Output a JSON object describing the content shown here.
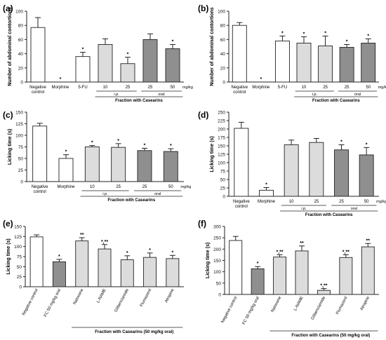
{
  "colors": {
    "open": "#ffffff",
    "light": "#dcdcdc",
    "dark": "#8f8f8f",
    "stroke": "#222222"
  },
  "chart_data": [
    {
      "panel": "(a)",
      "type": "bar",
      "ylabel": "Number of abdominal contortions",
      "ylim": [
        0,
        100
      ],
      "yticks": [
        0,
        20,
        40,
        60,
        80,
        100
      ],
      "categories": [
        "Negative control",
        "Morphine",
        "5-FU",
        "10",
        "25",
        "25",
        "50"
      ],
      "values": [
        77,
        0,
        36,
        53,
        26,
        60,
        47
      ],
      "errors": [
        14,
        0,
        6,
        8,
        9,
        8,
        6
      ],
      "marks": [
        "",
        "*",
        "*",
        "",
        "*",
        "",
        "*"
      ],
      "fills": [
        "open",
        "open",
        "open",
        "light",
        "light",
        "dark",
        "dark"
      ],
      "unit": "mg/kg",
      "groups": [
        {
          "label": "i.p.",
          "from": 3,
          "to": 4
        },
        {
          "label": "oral",
          "from": 5,
          "to": 6
        }
      ],
      "bracket": {
        "label": "Fraction with Casearins",
        "from": 3,
        "to": 6
      }
    },
    {
      "panel": "(b)",
      "type": "bar",
      "ylabel": "Number of abdominal contortions",
      "ylim": [
        0,
        100
      ],
      "yticks": [
        0,
        20,
        40,
        60,
        80,
        100
      ],
      "categories": [
        "Negative control",
        "Morphine",
        "5-FU",
        "10",
        "25",
        "25",
        "50"
      ],
      "values": [
        80,
        0,
        58,
        55,
        51,
        49,
        55
      ],
      "errors": [
        4,
        0,
        7,
        9,
        14,
        4,
        6
      ],
      "marks": [
        "",
        "*",
        "*",
        "*",
        "*",
        "*",
        "*"
      ],
      "fills": [
        "open",
        "open",
        "open",
        "light",
        "light",
        "dark",
        "dark"
      ],
      "unit": "mg/kg",
      "groups": [
        {
          "label": "i.p.",
          "from": 3,
          "to": 4
        },
        {
          "label": "oral",
          "from": 5,
          "to": 6
        }
      ],
      "bracket": {
        "label": "Fraction with Casearins",
        "from": 3,
        "to": 6
      }
    },
    {
      "panel": "(c)",
      "type": "bar",
      "ylabel": "Licking time (s)",
      "ylim": [
        0,
        150
      ],
      "yticks": [
        0,
        25,
        50,
        75,
        100,
        125,
        150
      ],
      "categories": [
        "Negative control",
        "Morphine",
        "10",
        "25",
        "25",
        "50"
      ],
      "values": [
        120,
        50,
        75,
        74,
        67,
        65
      ],
      "errors": [
        6,
        8,
        3,
        8,
        5,
        6
      ],
      "marks": [
        "",
        "*",
        "*",
        "*",
        "*",
        "*"
      ],
      "fills": [
        "open",
        "open",
        "light",
        "light",
        "dark",
        "dark"
      ],
      "unit": "mg/kg",
      "groups": [
        {
          "label": "i.p.",
          "from": 2,
          "to": 3
        },
        {
          "label": "oral",
          "from": 4,
          "to": 5
        }
      ],
      "bracket": {
        "label": "Fraction with Casearins",
        "from": 2,
        "to": 5
      }
    },
    {
      "panel": "(d)",
      "type": "bar",
      "ylabel": "Licking time (s)",
      "ylim": [
        0,
        250
      ],
      "yticks": [
        0,
        25,
        50,
        75,
        100,
        125,
        150,
        175,
        200,
        225,
        250
      ],
      "categories": [
        "Negative control",
        "Morphine",
        "10",
        "25",
        "25",
        "50"
      ],
      "values": [
        202,
        18,
        153,
        160,
        138,
        123
      ],
      "errors": [
        18,
        8,
        14,
        12,
        15,
        22
      ],
      "marks": [
        "",
        "*",
        "",
        "",
        "*",
        "*"
      ],
      "fills": [
        "open",
        "open",
        "light",
        "light",
        "dark",
        "dark"
      ],
      "unit": "mg/kg",
      "groups": [
        {
          "label": "i.p.",
          "from": 2,
          "to": 3
        },
        {
          "label": "oral",
          "from": 4,
          "to": 5
        }
      ],
      "bracket": {
        "label": "Fraction with Casearins",
        "from": 2,
        "to": 5
      }
    },
    {
      "panel": "(e)",
      "type": "bar",
      "ylabel": "Licking time (s)",
      "ylim": [
        0,
        150
      ],
      "yticks": [
        0,
        25,
        50,
        75,
        100,
        125,
        150
      ],
      "categories": [
        "Negative control",
        "FC 50 mg/kg oral",
        "Naloxone",
        "L-NAME",
        "Glibenclamide",
        "Flumazenil",
        "Atropine"
      ],
      "values": [
        124,
        62,
        114,
        94,
        67,
        73,
        70
      ],
      "errors": [
        5,
        6,
        8,
        11,
        10,
        11,
        8
      ],
      "marks": [
        "",
        "*",
        "**",
        "*,**",
        "*",
        "*",
        "*"
      ],
      "fills": [
        "open",
        "dark",
        "light",
        "light",
        "light",
        "light",
        "light"
      ],
      "bracket": {
        "label": "Fraction with Casearins (50 mg/kg oral)",
        "from": 2,
        "to": 6
      }
    },
    {
      "panel": "(f)",
      "type": "bar",
      "ylabel": "Licking time (s)",
      "ylim": [
        0,
        300
      ],
      "yticks": [
        0,
        50,
        100,
        150,
        200,
        250,
        300
      ],
      "categories": [
        "Negative control",
        "FC 50 mg/kg oral",
        "Naloxone",
        "L-NAME",
        "Glibenclamide",
        "Flumazenil",
        "Atropine"
      ],
      "values": [
        238,
        113,
        165,
        192,
        18,
        163,
        210
      ],
      "errors": [
        18,
        10,
        10,
        22,
        8,
        12,
        15
      ],
      "marks": [
        "",
        "*",
        "*,**",
        "**",
        "*,**",
        "*,**",
        "**"
      ],
      "fills": [
        "open",
        "dark",
        "light",
        "light",
        "light",
        "light",
        "light"
      ],
      "bracket": {
        "label": "Fraction with Casearins (50 mg/kg oral)",
        "from": 2,
        "to": 6
      }
    }
  ]
}
